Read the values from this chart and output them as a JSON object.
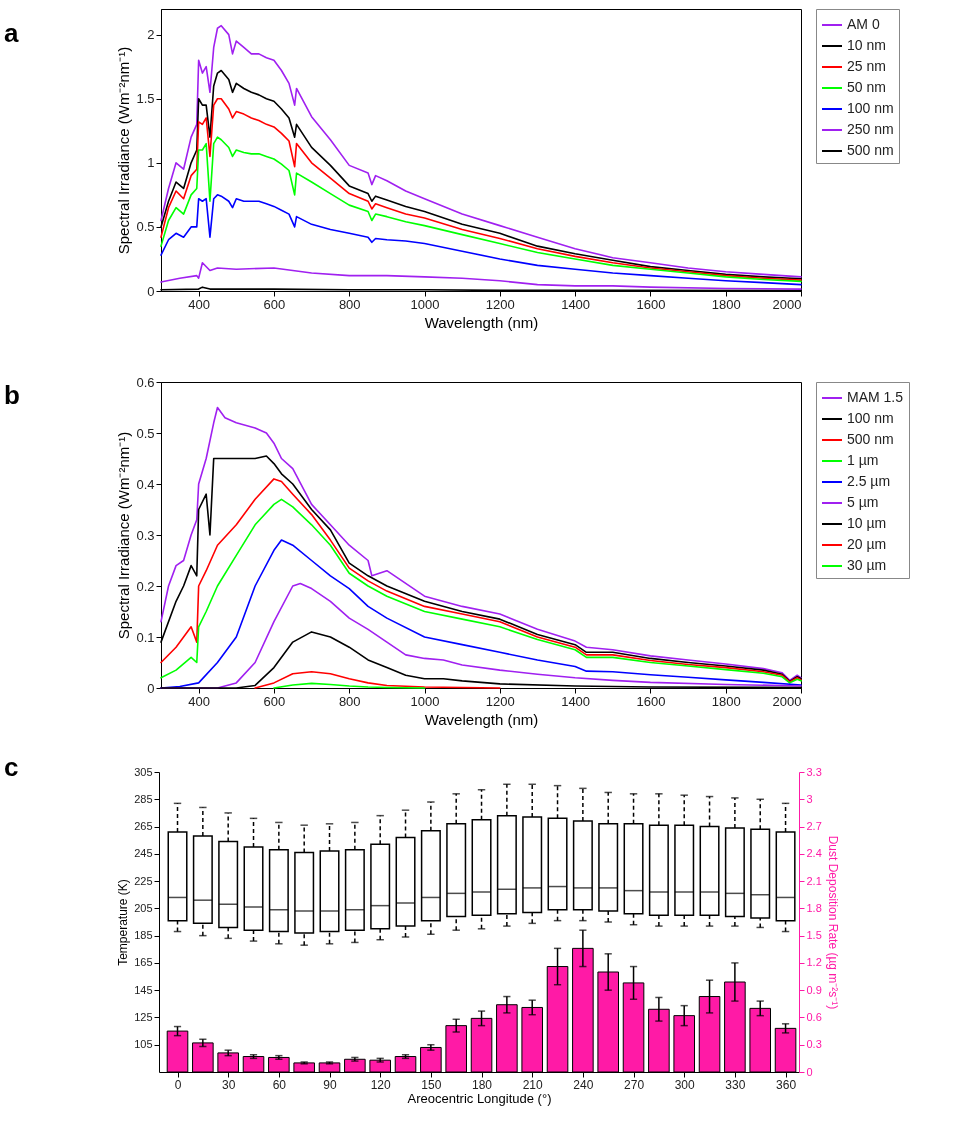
{
  "chart_data": [
    {
      "type": "line",
      "title": "a",
      "xlabel": "Wavelength (nm)",
      "ylabel": "Spectral Irradiance (Wm⁻²nm⁻¹)",
      "xlim": [
        300,
        2000
      ],
      "xticks": [
        400,
        600,
        800,
        1000,
        1200,
        1400,
        1600,
        1800,
        2000
      ],
      "ylim": [
        0,
        2.2
      ],
      "yticks": [
        0,
        0.5,
        1,
        1.5,
        2
      ],
      "grid": false,
      "legend": "right",
      "line_style": "solid",
      "x": [
        300,
        320,
        340,
        360,
        380,
        395,
        400,
        410,
        420,
        430,
        440,
        450,
        460,
        480,
        490,
        500,
        520,
        540,
        560,
        580,
        600,
        620,
        640,
        655,
        660,
        700,
        750,
        800,
        850,
        860,
        870,
        900,
        950,
        1000,
        1100,
        1200,
        1300,
        1400,
        1500,
        1600,
        1700,
        1800,
        1900,
        2000
      ],
      "series": [
        {
          "name": "AM 0",
          "color": "#a020f0",
          "values": [
            0.55,
            0.8,
            1.0,
            0.95,
            1.2,
            1.3,
            1.8,
            1.7,
            1.75,
            1.55,
            1.9,
            2.05,
            2.07,
            2.0,
            1.85,
            1.95,
            1.9,
            1.85,
            1.85,
            1.82,
            1.8,
            1.72,
            1.62,
            1.45,
            1.58,
            1.36,
            1.18,
            0.98,
            0.92,
            0.83,
            0.9,
            0.86,
            0.78,
            0.72,
            0.6,
            0.51,
            0.42,
            0.33,
            0.26,
            0.22,
            0.18,
            0.15,
            0.13,
            0.11
          ]
        },
        {
          "name": "10 nm",
          "color": "#000000",
          "values": [
            0.5,
            0.7,
            0.85,
            0.8,
            1.0,
            1.1,
            1.5,
            1.45,
            1.45,
            1.2,
            1.6,
            1.7,
            1.72,
            1.65,
            1.55,
            1.62,
            1.58,
            1.55,
            1.53,
            1.5,
            1.48,
            1.42,
            1.35,
            1.2,
            1.3,
            1.12,
            0.98,
            0.82,
            0.76,
            0.7,
            0.74,
            0.71,
            0.66,
            0.62,
            0.52,
            0.45,
            0.35,
            0.29,
            0.24,
            0.19,
            0.16,
            0.13,
            0.11,
            0.095
          ]
        },
        {
          "name": "25 nm",
          "color": "#ff0000",
          "values": [
            0.42,
            0.65,
            0.78,
            0.72,
            0.9,
            0.95,
            1.32,
            1.3,
            1.35,
            1.05,
            1.45,
            1.5,
            1.5,
            1.42,
            1.35,
            1.4,
            1.38,
            1.35,
            1.33,
            1.3,
            1.28,
            1.23,
            1.17,
            0.97,
            1.15,
            1.0,
            0.88,
            0.76,
            0.7,
            0.64,
            0.68,
            0.65,
            0.6,
            0.57,
            0.48,
            0.41,
            0.33,
            0.27,
            0.22,
            0.18,
            0.15,
            0.12,
            0.1,
            0.085
          ]
        },
        {
          "name": "50 nm",
          "color": "#00ff00",
          "values": [
            0.35,
            0.55,
            0.65,
            0.6,
            0.75,
            0.8,
            1.1,
            1.1,
            1.15,
            0.7,
            1.15,
            1.2,
            1.18,
            1.12,
            1.05,
            1.1,
            1.08,
            1.07,
            1.07,
            1.05,
            1.03,
            0.99,
            0.94,
            0.75,
            0.92,
            0.85,
            0.76,
            0.67,
            0.62,
            0.55,
            0.6,
            0.58,
            0.54,
            0.51,
            0.44,
            0.37,
            0.3,
            0.25,
            0.2,
            0.17,
            0.14,
            0.11,
            0.09,
            0.075
          ]
        },
        {
          "name": "100 nm",
          "color": "#0000ff",
          "values": [
            0.28,
            0.4,
            0.45,
            0.42,
            0.5,
            0.5,
            0.72,
            0.7,
            0.72,
            0.42,
            0.72,
            0.75,
            0.74,
            0.7,
            0.65,
            0.72,
            0.7,
            0.7,
            0.7,
            0.68,
            0.66,
            0.63,
            0.6,
            0.5,
            0.58,
            0.52,
            0.48,
            0.45,
            0.42,
            0.38,
            0.41,
            0.4,
            0.39,
            0.37,
            0.31,
            0.25,
            0.2,
            0.17,
            0.14,
            0.12,
            0.1,
            0.08,
            0.065,
            0.05
          ]
        },
        {
          "name": "250 nm",
          "color": "#a020f0",
          "x": [
            300,
            350,
            395,
            400,
            410,
            430,
            450,
            500,
            600,
            700,
            800,
            900,
            1000,
            1100,
            1200,
            1300,
            1400,
            1500,
            1600,
            1800,
            2000
          ],
          "values": [
            0.07,
            0.1,
            0.12,
            0.1,
            0.22,
            0.16,
            0.18,
            0.17,
            0.18,
            0.14,
            0.12,
            0.12,
            0.11,
            0.1,
            0.08,
            0.05,
            0.04,
            0.04,
            0.03,
            0.02,
            0.015
          ]
        },
        {
          "name": "500 nm",
          "color": "#000000",
          "x": [
            300,
            400,
            410,
            430,
            500,
            600,
            800,
            1000,
            1200,
            1500,
            2000
          ],
          "values": [
            0.01,
            0.015,
            0.03,
            0.015,
            0.015,
            0.015,
            0.01,
            0.01,
            0.005,
            0.005,
            0.002
          ]
        }
      ]
    },
    {
      "type": "line",
      "title": "b",
      "xlabel": "Wavelength (nm)",
      "ylabel": "Spectral Irradiance (Wm⁻²nm⁻¹)",
      "xlim": [
        300,
        2000
      ],
      "xticks": [
        400,
        600,
        800,
        1000,
        1200,
        1400,
        1600,
        1800,
        2000
      ],
      "ylim": [
        0,
        0.6
      ],
      "yticks": [
        0,
        0.1,
        0.2,
        0.3,
        0.4,
        0.5,
        0.6
      ],
      "grid": false,
      "legend": "right",
      "line_style": "solid",
      "series": [
        {
          "name": "MAM 1.5",
          "color": "#a020f0",
          "x": [
            300,
            320,
            340,
            360,
            380,
            395,
            400,
            420,
            440,
            450,
            470,
            500,
            550,
            580,
            600,
            620,
            650,
            700,
            750,
            800,
            850,
            860,
            900,
            1000,
            1100,
            1200,
            1300,
            1400,
            1430,
            1500,
            1600,
            1700,
            1800,
            1900,
            1950,
            1970,
            1990,
            2000
          ],
          "values": [
            0.13,
            0.2,
            0.24,
            0.25,
            0.3,
            0.33,
            0.4,
            0.45,
            0.52,
            0.55,
            0.53,
            0.52,
            0.51,
            0.5,
            0.48,
            0.45,
            0.43,
            0.36,
            0.32,
            0.28,
            0.25,
            0.22,
            0.23,
            0.18,
            0.16,
            0.145,
            0.115,
            0.092,
            0.08,
            0.075,
            0.063,
            0.055,
            0.047,
            0.038,
            0.03,
            0.015,
            0.025,
            0.02
          ]
        },
        {
          "name": "100 nm",
          "color": "#000000",
          "x": [
            300,
            340,
            360,
            380,
            395,
            400,
            420,
            430,
            440,
            460,
            500,
            550,
            580,
            600,
            620,
            650,
            700,
            750,
            800,
            850,
            900,
            1000,
            1100,
            1200,
            1300,
            1400,
            1430,
            1500,
            1600,
            1700,
            1800,
            1900,
            1950,
            1970,
            1990,
            2000
          ],
          "values": [
            0.09,
            0.17,
            0.2,
            0.24,
            0.22,
            0.35,
            0.38,
            0.3,
            0.45,
            0.45,
            0.45,
            0.45,
            0.455,
            0.44,
            0.42,
            0.4,
            0.35,
            0.31,
            0.245,
            0.22,
            0.2,
            0.17,
            0.15,
            0.135,
            0.105,
            0.085,
            0.07,
            0.07,
            0.058,
            0.05,
            0.043,
            0.035,
            0.027,
            0.013,
            0.022,
            0.018
          ]
        },
        {
          "name": "500 nm",
          "color": "#ff0000",
          "x": [
            300,
            340,
            380,
            395,
            400,
            420,
            450,
            500,
            550,
            600,
            620,
            650,
            700,
            750,
            800,
            850,
            900,
            1000,
            1100,
            1200,
            1300,
            1400,
            1430,
            1500,
            1600,
            1700,
            1800,
            1900,
            1950,
            1970,
            1990,
            2000
          ],
          "values": [
            0.05,
            0.08,
            0.12,
            0.09,
            0.2,
            0.23,
            0.28,
            0.32,
            0.37,
            0.41,
            0.405,
            0.38,
            0.34,
            0.29,
            0.235,
            0.21,
            0.19,
            0.16,
            0.145,
            0.13,
            0.1,
            0.08,
            0.065,
            0.065,
            0.054,
            0.046,
            0.04,
            0.032,
            0.025,
            0.012,
            0.02,
            0.016
          ]
        },
        {
          "name": "1 µm",
          "color": "#00ff00",
          "x": [
            300,
            340,
            380,
            395,
            400,
            420,
            450,
            500,
            550,
            600,
            620,
            650,
            700,
            750,
            800,
            850,
            900,
            1000,
            1100,
            1200,
            1300,
            1400,
            1430,
            1500,
            1600,
            1700,
            1800,
            1900,
            1950,
            1970,
            1990,
            2000
          ],
          "values": [
            0.02,
            0.035,
            0.06,
            0.05,
            0.12,
            0.15,
            0.2,
            0.26,
            0.32,
            0.36,
            0.37,
            0.355,
            0.32,
            0.28,
            0.225,
            0.2,
            0.18,
            0.15,
            0.135,
            0.12,
            0.095,
            0.075,
            0.06,
            0.06,
            0.05,
            0.043,
            0.036,
            0.029,
            0.022,
            0.01,
            0.017,
            0.014
          ]
        },
        {
          "name": "2.5 µm",
          "color": "#0000ff",
          "x": [
            300,
            350,
            400,
            450,
            500,
            550,
            600,
            620,
            650,
            700,
            750,
            800,
            850,
            900,
            1000,
            1100,
            1200,
            1300,
            1400,
            1430,
            1500,
            1600,
            1700,
            1800,
            1900,
            2000
          ],
          "values": [
            0,
            0.003,
            0.01,
            0.05,
            0.1,
            0.2,
            0.27,
            0.29,
            0.28,
            0.25,
            0.22,
            0.195,
            0.16,
            0.137,
            0.1,
            0.085,
            0.07,
            0.055,
            0.042,
            0.033,
            0.032,
            0.026,
            0.021,
            0.016,
            0.011,
            0.006
          ]
        },
        {
          "name": "5 µm",
          "color": "#a020f0",
          "x": [
            300,
            450,
            500,
            550,
            600,
            650,
            670,
            700,
            750,
            800,
            850,
            900,
            950,
            1000,
            1050,
            1100,
            1200,
            1300,
            1400,
            1500,
            1600,
            1800,
            2000
          ],
          "values": [
            0,
            0,
            0.01,
            0.05,
            0.13,
            0.2,
            0.205,
            0.195,
            0.17,
            0.137,
            0.115,
            0.09,
            0.065,
            0.058,
            0.055,
            0.045,
            0.035,
            0.027,
            0.02,
            0.015,
            0.011,
            0.007,
            0.004
          ]
        },
        {
          "name": "10 µm",
          "color": "#000000",
          "x": [
            300,
            500,
            550,
            600,
            650,
            700,
            750,
            800,
            850,
            900,
            950,
            1000,
            1050,
            1100,
            1200,
            1400,
            1600,
            2000
          ],
          "values": [
            0,
            0,
            0.005,
            0.04,
            0.09,
            0.11,
            0.1,
            0.08,
            0.055,
            0.04,
            0.025,
            0.018,
            0.018,
            0.014,
            0.008,
            0.004,
            0.002,
            0.001
          ]
        },
        {
          "name": "20 µm",
          "color": "#ff0000",
          "x": [
            550,
            600,
            650,
            700,
            750,
            800,
            850,
            900,
            1000,
            1200
          ],
          "values": [
            0,
            0.01,
            0.028,
            0.032,
            0.028,
            0.018,
            0.01,
            0.005,
            0.002,
            0
          ]
        },
        {
          "name": "30 µm",
          "color": "#00ff00",
          "x": [
            600,
            650,
            700,
            750,
            800,
            850,
            900,
            1000
          ],
          "values": [
            0,
            0.006,
            0.009,
            0.007,
            0.004,
            0.002,
            0.001,
            0
          ]
        }
      ]
    },
    {
      "type": "box",
      "title": "c",
      "xlabel": "Areocentric Longitude (°)",
      "ylabel": "Temperature (K)",
      "y2label": "Dust Deposition Rate (µg m⁻²s⁻¹)",
      "xlim": [
        -8,
        365
      ],
      "xticks": [
        0,
        30,
        60,
        90,
        120,
        150,
        180,
        210,
        240,
        270,
        300,
        330,
        360
      ],
      "ylim": [
        85,
        305
      ],
      "yticks": [
        105,
        125,
        145,
        165,
        185,
        205,
        225,
        245,
        265,
        285,
        305
      ],
      "y2lim": [
        0,
        3.3
      ],
      "y2ticks": [
        0,
        0.3,
        0.6,
        0.9,
        1.2,
        1.5,
        1.8,
        2.1,
        2.4,
        2.7,
        3,
        3.3
      ],
      "grid": false,
      "x": [
        0,
        15,
        30,
        45,
        60,
        75,
        90,
        105,
        120,
        135,
        150,
        165,
        180,
        195,
        210,
        225,
        240,
        255,
        270,
        285,
        300,
        315,
        330,
        345,
        360
      ],
      "series": [
        {
          "type": "box",
          "color": "#000000",
          "boxes": [
            {
              "low": 188,
              "q1": 196,
              "median": 213,
              "q3": 261,
              "high": 282
            },
            {
              "low": 185,
              "q1": 194,
              "median": 211,
              "q3": 258,
              "high": 279
            },
            {
              "low": 183,
              "q1": 191,
              "median": 208,
              "q3": 254,
              "high": 275
            },
            {
              "low": 181,
              "q1": 189,
              "median": 206,
              "q3": 250,
              "high": 271
            },
            {
              "low": 179,
              "q1": 188,
              "median": 204,
              "q3": 248,
              "high": 268
            },
            {
              "low": 178,
              "q1": 187,
              "median": 203,
              "q3": 246,
              "high": 266
            },
            {
              "low": 179,
              "q1": 188,
              "median": 203,
              "q3": 247,
              "high": 267
            },
            {
              "low": 180,
              "q1": 189,
              "median": 204,
              "q3": 248,
              "high": 268
            },
            {
              "low": 182,
              "q1": 190,
              "median": 207,
              "q3": 252,
              "high": 273
            },
            {
              "low": 184,
              "q1": 192,
              "median": 209,
              "q3": 257,
              "high": 277
            },
            {
              "low": 186,
              "q1": 196,
              "median": 213,
              "q3": 262,
              "high": 283
            },
            {
              "low": 189,
              "q1": 199,
              "median": 216,
              "q3": 267,
              "high": 289
            },
            {
              "low": 190,
              "q1": 200,
              "median": 217,
              "q3": 270,
              "high": 292
            },
            {
              "low": 192,
              "q1": 201,
              "median": 219,
              "q3": 273,
              "high": 296
            },
            {
              "low": 194,
              "q1": 202,
              "median": 220,
              "q3": 272,
              "high": 296
            },
            {
              "low": 196,
              "q1": 204,
              "median": 221,
              "q3": 271,
              "high": 295
            },
            {
              "low": 196,
              "q1": 204,
              "median": 220,
              "q3": 269,
              "high": 293
            },
            {
              "low": 195,
              "q1": 203,
              "median": 220,
              "q3": 267,
              "high": 290
            },
            {
              "low": 193,
              "q1": 201,
              "median": 218,
              "q3": 267,
              "high": 289
            },
            {
              "low": 192,
              "q1": 200,
              "median": 217,
              "q3": 266,
              "high": 289
            },
            {
              "low": 192,
              "q1": 200,
              "median": 217,
              "q3": 266,
              "high": 288
            },
            {
              "low": 192,
              "q1": 200,
              "median": 217,
              "q3": 265,
              "high": 287
            },
            {
              "low": 192,
              "q1": 199,
              "median": 216,
              "q3": 264,
              "high": 286
            },
            {
              "low": 191,
              "q1": 198,
              "median": 215,
              "q3": 263,
              "high": 285
            },
            {
              "low": 188,
              "q1": 196,
              "median": 213,
              "q3": 261,
              "high": 282
            }
          ]
        },
        {
          "type": "bar",
          "axis": "y2",
          "color": "#ff1aa6",
          "values": [
            0.45,
            0.32,
            0.21,
            0.17,
            0.16,
            0.1,
            0.1,
            0.14,
            0.13,
            0.17,
            0.27,
            0.51,
            0.59,
            0.74,
            0.71,
            1.16,
            1.36,
            1.1,
            0.98,
            0.69,
            0.62,
            0.83,
            0.99,
            0.7,
            0.48
          ],
          "errors": [
            0.05,
            0.04,
            0.03,
            0.02,
            0.02,
            0.01,
            0.01,
            0.02,
            0.02,
            0.02,
            0.03,
            0.07,
            0.08,
            0.09,
            0.08,
            0.2,
            0.2,
            0.2,
            0.18,
            0.13,
            0.11,
            0.18,
            0.21,
            0.08,
            0.05
          ]
        }
      ]
    }
  ]
}
